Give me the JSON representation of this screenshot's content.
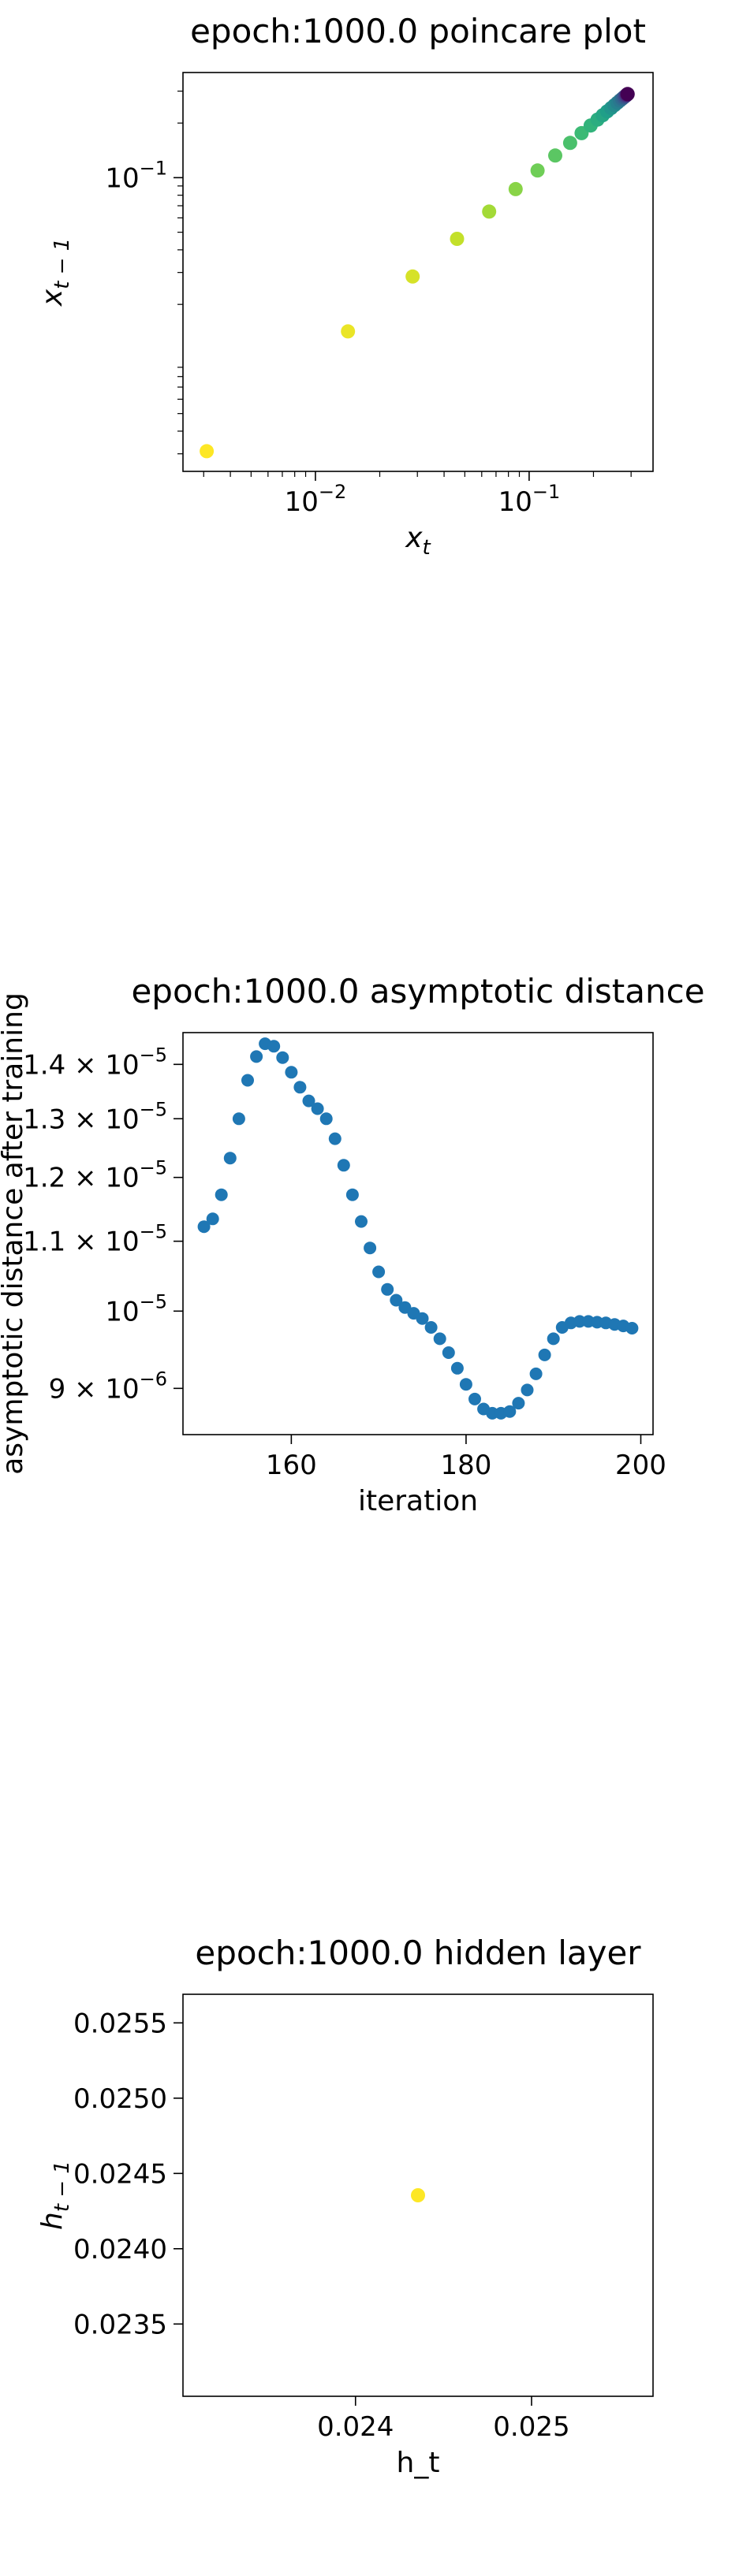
{
  "chart_data": [
    {
      "type": "scatter",
      "title": "epoch:1000.0 poincare plot",
      "xlabel": "x",
      "xlabel_sub": "t",
      "ylabel": "x",
      "ylabel_sub": "t − 1",
      "xscale": "log",
      "yscale": "log",
      "xlim": [
        0.0024,
        0.38
      ],
      "ylim": [
        0.0024,
        0.38
      ],
      "xticks": [
        {
          "value": 0.01,
          "base": "10",
          "exp": "−2"
        },
        {
          "value": 0.1,
          "base": "10",
          "exp": "−1"
        }
      ],
      "yticks": [
        {
          "value": 0.1,
          "base": "10",
          "exp": "−1"
        }
      ],
      "colormap": "viridis",
      "colormap_stops": [
        "#fde725",
        "#b5de2b",
        "#6ece58",
        "#35b779",
        "#1f9e89",
        "#26828e",
        "#31688e",
        "#3e4989",
        "#482878",
        "#440154"
      ],
      "x": [
        0.0031,
        0.0142,
        0.0285,
        0.046,
        0.065,
        0.0865,
        0.1095,
        0.1325,
        0.1555,
        0.176,
        0.194,
        0.209,
        0.221,
        0.232,
        0.242,
        0.251,
        0.259,
        0.266,
        0.272,
        0.277,
        0.281,
        0.284,
        0.286,
        0.2875,
        0.2885,
        0.289
      ],
      "y": [
        0.0031,
        0.0142,
        0.0285,
        0.046,
        0.065,
        0.0865,
        0.1095,
        0.1325,
        0.1555,
        0.176,
        0.194,
        0.209,
        0.221,
        0.232,
        0.242,
        0.251,
        0.259,
        0.266,
        0.272,
        0.277,
        0.281,
        0.284,
        0.286,
        0.2875,
        0.2885,
        0.289
      ],
      "color_values": [
        0.0,
        0.03,
        0.06,
        0.09,
        0.14,
        0.18,
        0.22,
        0.26,
        0.29,
        0.32,
        0.35,
        0.38,
        0.41,
        0.44,
        0.48,
        0.52,
        0.56,
        0.6,
        0.65,
        0.7,
        0.75,
        0.8,
        0.85,
        0.9,
        0.95,
        1.0
      ],
      "grid": false
    },
    {
      "type": "scatter",
      "title": "epoch:1000.0 asymptotic distance",
      "xlabel": "iteration",
      "ylabel": "asymptotic distance after training",
      "xscale": "linear",
      "yscale": "log",
      "xlim": [
        147.6,
        201.4
      ],
      "ylim": [
        8.45e-06,
        1.462e-05
      ],
      "xticks": [
        {
          "value": 160,
          "label": "160"
        },
        {
          "value": 180,
          "label": "180"
        },
        {
          "value": 200,
          "label": "200"
        }
      ],
      "yticks": [
        {
          "value": 9e-06,
          "mant": "9",
          "base": "10",
          "exp": "−6"
        },
        {
          "value": 1e-05,
          "mant": "",
          "base": "10",
          "exp": "−5"
        },
        {
          "value": 1.1e-05,
          "mant": "1.1",
          "base": "10",
          "exp": "−5"
        },
        {
          "value": 1.2e-05,
          "mant": "1.2",
          "base": "10",
          "exp": "−5"
        },
        {
          "value": 1.3e-05,
          "mant": "1.3",
          "base": "10",
          "exp": "−5"
        },
        {
          "value": 1.4e-05,
          "mant": "1.4",
          "base": "10",
          "exp": "−5"
        }
      ],
      "color": "#1f77b4",
      "x": [
        150,
        151,
        152,
        153,
        154,
        155,
        156,
        157,
        158,
        159,
        160,
        161,
        162,
        163,
        164,
        165,
        166,
        167,
        168,
        169,
        170,
        171,
        172,
        173,
        174,
        175,
        176,
        177,
        178,
        179,
        180,
        181,
        182,
        183,
        184,
        185,
        186,
        187,
        188,
        189,
        190,
        191,
        192,
        193,
        194,
        195,
        196,
        197,
        198,
        199
      ],
      "y": [
        1.122e-05,
        1.134e-05,
        1.172e-05,
        1.232e-05,
        1.3e-05,
        1.37e-05,
        1.415e-05,
        1.44e-05,
        1.435e-05,
        1.413e-05,
        1.385e-05,
        1.357e-05,
        1.332e-05,
        1.318e-05,
        1.3e-05,
        1.265e-05,
        1.22e-05,
        1.172e-05,
        1.13e-05,
        1.09e-05,
        1.055e-05,
        1.03e-05,
        1.015e-05,
        1.005e-05,
        9.97e-06,
        9.9e-06,
        9.78e-06,
        9.63e-06,
        9.45e-06,
        9.25e-06,
        9.05e-06,
        8.87e-06,
        8.75e-06,
        8.7e-06,
        8.7e-06,
        8.72e-06,
        8.82e-06,
        8.98e-06,
        9.18e-06,
        9.42e-06,
        9.63e-06,
        9.78e-06,
        9.84e-06,
        9.86e-06,
        9.86e-06,
        9.85e-06,
        9.84e-06,
        9.82e-06,
        9.8e-06,
        9.77e-06
      ],
      "grid": false
    },
    {
      "type": "scatter",
      "title": "epoch:1000.0 hidden layer",
      "xlabel": "h_t",
      "ylabel": "h",
      "ylabel_sub": "t − 1",
      "xscale": "linear",
      "yscale": "linear",
      "xlim": [
        0.02302,
        0.02569
      ],
      "ylim": [
        0.02302,
        0.02569
      ],
      "xticks": [
        {
          "value": 0.024,
          "label": "0.024"
        },
        {
          "value": 0.025,
          "label": "0.025"
        }
      ],
      "yticks": [
        {
          "value": 0.0235,
          "label": "0.0235"
        },
        {
          "value": 0.024,
          "label": "0.0240"
        },
        {
          "value": 0.0245,
          "label": "0.0245"
        },
        {
          "value": 0.025,
          "label": "0.0250"
        },
        {
          "value": 0.0255,
          "label": "0.0255"
        }
      ],
      "color": "#fde725",
      "x": [
        0.024355
      ],
      "y": [
        0.024355
      ],
      "grid": false
    }
  ]
}
